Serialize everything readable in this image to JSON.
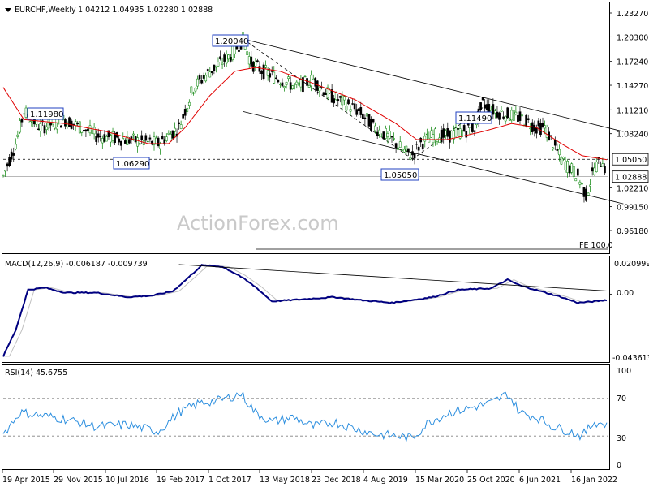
{
  "header": {
    "title": "EURCHF,Weekly",
    "ohlc": "1.04212 1.04935 1.02280 1.02888"
  },
  "watermark": "ActionForex.com",
  "fe_label": "FE 100.0",
  "macd": {
    "label": "MACD(12,26,9) -0.006187 -0.009739",
    "ticks": [
      "0.020999",
      "0.00",
      "-0.043613"
    ]
  },
  "rsi": {
    "label": "RSI(14) 45.6755",
    "ticks": [
      "100",
      "70",
      "30",
      "0"
    ]
  },
  "colors": {
    "bull": "#008000",
    "bear": "#000000",
    "ma": "#e00000",
    "macd_line": "#000080",
    "signal_line": "#c0c0c0",
    "rsi_line": "#2d8fdf"
  },
  "chart_data": {
    "type": "candlestick",
    "symbol": "EURCHF",
    "timeframe": "Weekly",
    "price_axis_ticks": [
      "1.23270",
      "1.20300",
      "1.17240",
      "1.14270",
      "1.11210",
      "1.08240",
      "1.05050",
      "1.02888",
      "1.02210",
      "0.99150",
      "0.96180"
    ],
    "x_tick_labels": [
      "19 Apr 2015",
      "29 Nov 2015",
      "10 Jul 2016",
      "19 Feb 2017",
      "1 Oct 2017",
      "13 May 2018",
      "23 Dec 2018",
      "4 Aug 2019",
      "15 Mar 2020",
      "25 Oct 2020",
      "6 Jun 2021",
      "16 Jan 2022"
    ],
    "annotations": [
      "1.20040",
      "1.11980",
      "1.06290",
      "1.05050",
      "1.11490"
    ],
    "price_path": [
      [
        0,
        1.03
      ],
      [
        6,
        1.07
      ],
      [
        10,
        1.11
      ],
      [
        18,
        1.09
      ],
      [
        30,
        1.1
      ],
      [
        45,
        1.08
      ],
      [
        60,
        1.075
      ],
      [
        75,
        1.07
      ],
      [
        85,
        1.09
      ],
      [
        92,
        1.14
      ],
      [
        100,
        1.16
      ],
      [
        110,
        1.18
      ],
      [
        116,
        1.2
      ],
      [
        120,
        1.17
      ],
      [
        126,
        1.16
      ],
      [
        134,
        1.15
      ],
      [
        142,
        1.14
      ],
      [
        150,
        1.15
      ],
      [
        158,
        1.13
      ],
      [
        166,
        1.12
      ],
      [
        172,
        1.11
      ],
      [
        180,
        1.09
      ],
      [
        188,
        1.075
      ],
      [
        194,
        1.06
      ],
      [
        198,
        1.056
      ],
      [
        202,
        1.07
      ],
      [
        208,
        1.08
      ],
      [
        216,
        1.08
      ],
      [
        222,
        1.085
      ],
      [
        228,
        1.09
      ],
      [
        232,
        1.12
      ],
      [
        238,
        1.11
      ],
      [
        246,
        1.105
      ],
      [
        252,
        1.1
      ],
      [
        258,
        1.09
      ],
      [
        262,
        1.09
      ],
      [
        266,
        1.07
      ],
      [
        270,
        1.05
      ],
      [
        274,
        1.04
      ],
      [
        278,
        1.03
      ],
      [
        282,
        1.005
      ],
      [
        286,
        1.04
      ],
      [
        290,
        1.05
      ],
      [
        292,
        1.03
      ]
    ],
    "ma_path": [
      [
        0,
        1.14
      ],
      [
        10,
        1.1
      ],
      [
        30,
        1.095
      ],
      [
        50,
        1.085
      ],
      [
        70,
        1.07
      ],
      [
        80,
        1.07
      ],
      [
        88,
        1.09
      ],
      [
        100,
        1.13
      ],
      [
        112,
        1.16
      ],
      [
        122,
        1.165
      ],
      [
        134,
        1.16
      ],
      [
        150,
        1.145
      ],
      [
        170,
        1.125
      ],
      [
        190,
        1.095
      ],
      [
        200,
        1.075
      ],
      [
        215,
        1.075
      ],
      [
        232,
        1.085
      ],
      [
        246,
        1.095
      ],
      [
        258,
        1.09
      ],
      [
        270,
        1.07
      ],
      [
        280,
        1.055
      ],
      [
        292,
        1.05
      ]
    ],
    "macd_path": [
      [
        0,
        -0.043
      ],
      [
        6,
        -0.025
      ],
      [
        12,
        0.003
      ],
      [
        20,
        0.0045
      ],
      [
        30,
        0.001
      ],
      [
        45,
        0.001
      ],
      [
        60,
        -0.002
      ],
      [
        72,
        -0.001
      ],
      [
        82,
        0.002
      ],
      [
        90,
        0.012
      ],
      [
        96,
        0.02
      ],
      [
        106,
        0.019
      ],
      [
        114,
        0.013
      ],
      [
        122,
        0.005
      ],
      [
        130,
        -0.005
      ],
      [
        140,
        -0.004
      ],
      [
        150,
        -0.003
      ],
      [
        160,
        -0.002
      ],
      [
        172,
        -0.004
      ],
      [
        188,
        -0.006
      ],
      [
        198,
        -0.004
      ],
      [
        208,
        -0.002
      ],
      [
        220,
        0.003
      ],
      [
        236,
        0.004
      ],
      [
        244,
        0.01
      ],
      [
        250,
        0.006
      ],
      [
        260,
        0.002
      ],
      [
        270,
        -0.002
      ],
      [
        278,
        -0.006
      ],
      [
        286,
        -0.005
      ],
      [
        292,
        -0.004
      ]
    ],
    "rsi_path": [
      [
        0,
        32
      ],
      [
        8,
        55
      ],
      [
        18,
        52
      ],
      [
        30,
        48
      ],
      [
        45,
        40
      ],
      [
        60,
        42
      ],
      [
        75,
        35
      ],
      [
        85,
        55
      ],
      [
        95,
        65
      ],
      [
        105,
        68
      ],
      [
        115,
        75
      ],
      [
        122,
        55
      ],
      [
        130,
        45
      ],
      [
        140,
        50
      ],
      [
        150,
        40
      ],
      [
        160,
        45
      ],
      [
        170,
        38
      ],
      [
        180,
        32
      ],
      [
        190,
        30
      ],
      [
        198,
        28
      ],
      [
        206,
        45
      ],
      [
        216,
        55
      ],
      [
        226,
        60
      ],
      [
        236,
        65
      ],
      [
        244,
        75
      ],
      [
        250,
        55
      ],
      [
        258,
        50
      ],
      [
        266,
        40
      ],
      [
        274,
        35
      ],
      [
        280,
        30
      ],
      [
        286,
        45
      ],
      [
        292,
        42
      ]
    ],
    "channel": {
      "upper": [
        [
          116,
          1.2004
        ],
        [
          300,
          1.085
        ]
      ],
      "lower": [
        [
          116,
          1.11
        ],
        [
          300,
          0.995
        ]
      ]
    },
    "support_level": 1.0505,
    "current_level": 1.02888
  }
}
